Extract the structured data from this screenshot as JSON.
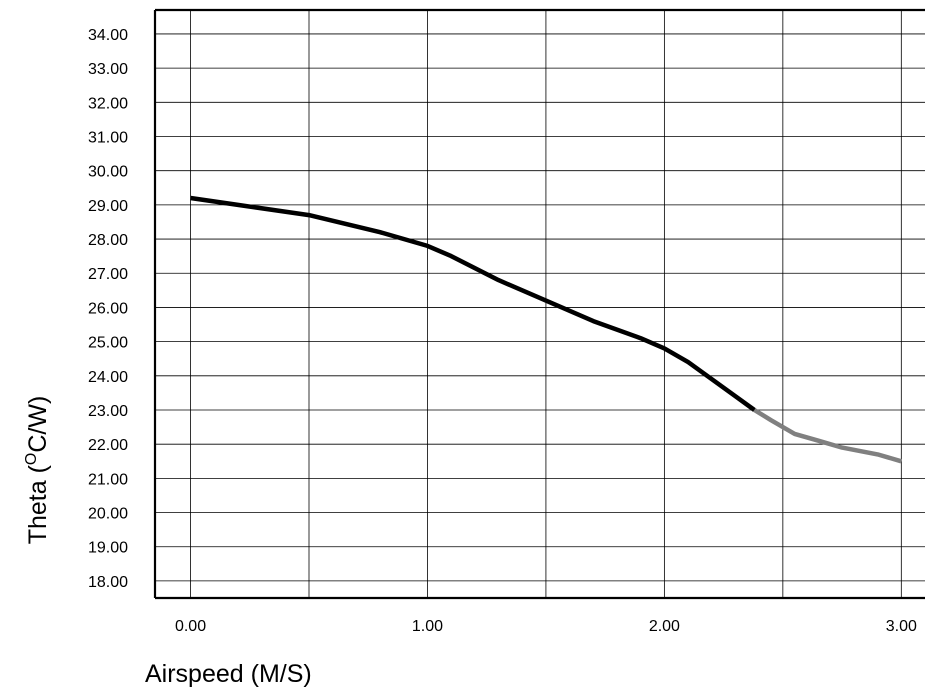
{
  "chart_data": {
    "type": "line",
    "title": "",
    "xlabel": "Airspeed (M/S)",
    "ylabel_parts": {
      "prefix": "Theta (",
      "superscript": "O",
      "suffix": "C/W)"
    },
    "xlim": [
      -0.15,
      3.1
    ],
    "ylim": [
      17.5,
      34.7
    ],
    "x_ticks": [
      "0.00",
      "1.00",
      "2.00",
      "3.00"
    ],
    "y_ticks": [
      "18.00",
      "19.00",
      "20.00",
      "21.00",
      "22.00",
      "23.00",
      "24.00",
      "25.00",
      "26.00",
      "27.00",
      "28.00",
      "29.00",
      "30.00",
      "31.00",
      "32.00",
      "33.00",
      "34.00"
    ],
    "x_gridlines": [
      0,
      0.5,
      1,
      1.5,
      2,
      2.5,
      3
    ],
    "y_gridlines": [
      18,
      19,
      20,
      21,
      22,
      23,
      24,
      25,
      26,
      27,
      28,
      29,
      30,
      31,
      32,
      33,
      34
    ],
    "grid": true,
    "series": [
      {
        "color": "#000000",
        "points": [
          [
            0.0,
            29.2
          ],
          [
            0.2,
            29.0
          ],
          [
            0.5,
            28.7
          ],
          [
            0.8,
            28.2
          ],
          [
            1.0,
            27.8
          ],
          [
            1.1,
            27.5
          ],
          [
            1.3,
            26.8
          ],
          [
            1.5,
            26.2
          ],
          [
            1.7,
            25.6
          ],
          [
            1.9,
            25.1
          ],
          [
            2.0,
            24.8
          ],
          [
            2.1,
            24.4
          ],
          [
            2.2,
            23.9
          ],
          [
            2.3,
            23.4
          ],
          [
            2.38,
            23.0
          ]
        ]
      },
      {
        "color": "#808080",
        "points": [
          [
            2.38,
            23.0
          ],
          [
            2.45,
            22.7
          ],
          [
            2.55,
            22.3
          ],
          [
            2.65,
            22.1
          ],
          [
            2.75,
            21.9
          ],
          [
            2.9,
            21.7
          ],
          [
            3.0,
            21.5
          ]
        ]
      }
    ]
  }
}
